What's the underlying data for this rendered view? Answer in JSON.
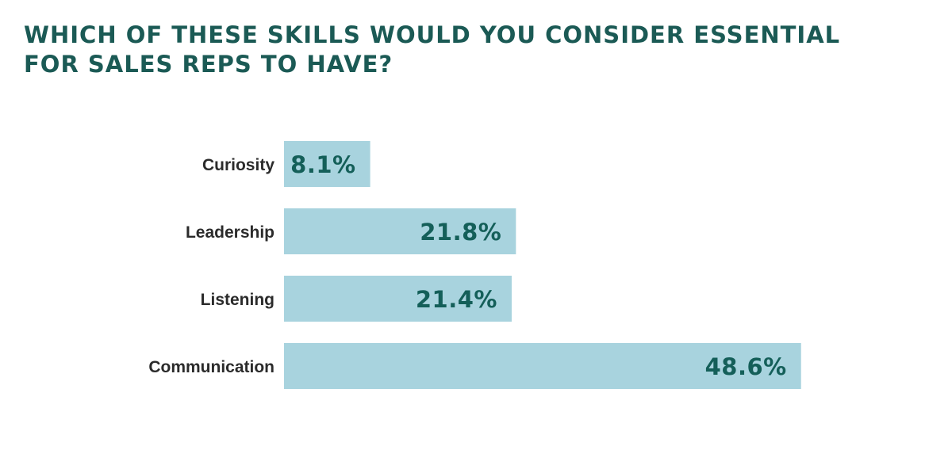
{
  "chart_data": {
    "type": "bar",
    "orientation": "horizontal",
    "title": "WHICH OF THESE SKILLS WOULD YOU CONSIDER ESSENTIAL\nFOR SALES REPS TO HAVE?",
    "categories": [
      "Curiosity",
      "Leadership",
      "Listening",
      "Communication"
    ],
    "values": [
      8.1,
      21.8,
      21.4,
      48.6
    ],
    "value_labels": [
      "8.1%",
      "21.8%",
      "21.4%",
      "48.6%"
    ],
    "unit": "%",
    "xlim": [
      0,
      50
    ],
    "grid": false,
    "legend": "none",
    "colors": {
      "bar": "#a8d3de",
      "value_text": "#145f59",
      "title": "#1b5a55",
      "category_text": "#2b2b2b"
    }
  }
}
